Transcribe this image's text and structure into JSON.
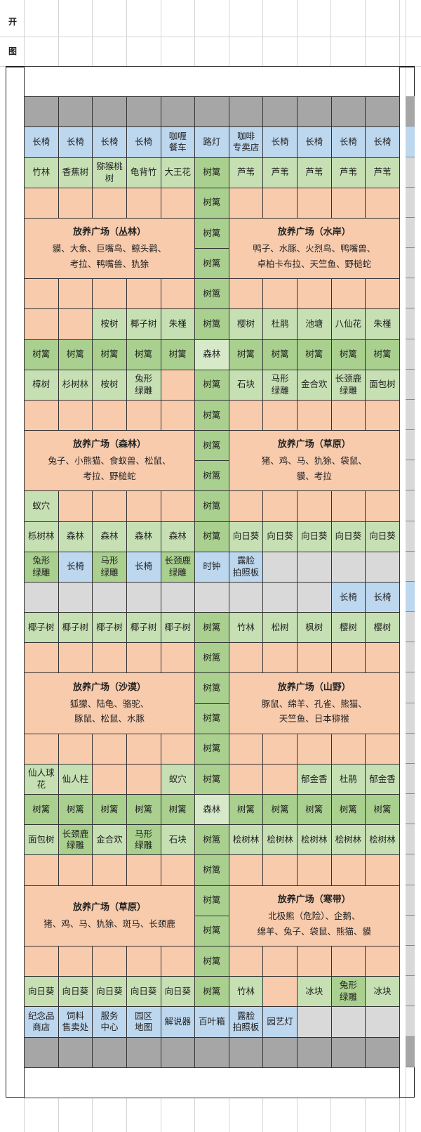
{
  "sidebar_labels": [
    "开",
    "图"
  ],
  "palette": {
    "s": "#f8cbad",
    "g": "#c6e0b4",
    "d": "#a9d08e",
    "f": "#d6e9c9",
    "b": "#bdd7ee",
    "k": "#a6a6a6",
    "l": "#d9d9d9",
    "w": "#ffffff"
  },
  "rows": [
    [
      {
        "c": "w",
        "span": 11
      }
    ],
    [
      {
        "c": "k"
      },
      {
        "c": "k"
      },
      {
        "c": "k"
      },
      {
        "c": "k"
      },
      {
        "c": "k"
      },
      {
        "c": "k"
      },
      {
        "c": "k"
      },
      {
        "c": "k"
      },
      {
        "c": "k"
      },
      {
        "c": "k"
      },
      {
        "c": "k"
      }
    ],
    [
      {
        "c": "b",
        "t": "长椅"
      },
      {
        "c": "b",
        "t": "长椅"
      },
      {
        "c": "b",
        "t": "长椅"
      },
      {
        "c": "b",
        "t": "长椅"
      },
      {
        "c": "b",
        "t": "咖喱\n餐车"
      },
      {
        "c": "b",
        "t": "路灯"
      },
      {
        "c": "b",
        "t": "咖啡\n专卖店"
      },
      {
        "c": "b",
        "t": "长椅"
      },
      {
        "c": "b",
        "t": "长椅"
      },
      {
        "c": "b",
        "t": "长椅"
      },
      {
        "c": "b",
        "t": "长椅"
      }
    ],
    [
      {
        "c": "g",
        "t": "竹林"
      },
      {
        "c": "g",
        "t": "香蕉树"
      },
      {
        "c": "g",
        "t": "猕猴桃\n树"
      },
      {
        "c": "g",
        "t": "龟背竹"
      },
      {
        "c": "g",
        "t": "大王花"
      },
      {
        "c": "d",
        "t": "树篱"
      },
      {
        "c": "g",
        "t": "芦苇"
      },
      {
        "c": "g",
        "t": "芦苇"
      },
      {
        "c": "g",
        "t": "芦苇"
      },
      {
        "c": "g",
        "t": "芦苇"
      },
      {
        "c": "g",
        "t": "芦苇"
      }
    ],
    [
      {
        "c": "s"
      },
      {
        "c": "s"
      },
      {
        "c": "s"
      },
      {
        "c": "s"
      },
      {
        "c": "s"
      },
      {
        "c": "d",
        "t": "树篱"
      },
      {
        "c": "s"
      },
      {
        "c": "s"
      },
      {
        "c": "s"
      },
      {
        "c": "s"
      },
      {
        "c": "s"
      }
    ],
    [
      {
        "c": "s",
        "span": 5,
        "rows": 2,
        "plaza": {
          "title": "放养广场（丛林）",
          "lines": [
            "貘、大象、巨嘴鸟、鲸头鹳、",
            "考拉、鸭嘴兽、犰狳"
          ]
        }
      },
      {
        "c": "d",
        "t": "树篱"
      },
      {
        "c": "s",
        "span": 5,
        "rows": 2,
        "plaza": {
          "title": "放养广场（水岸）",
          "lines": [
            "鸭子、水豚、火烈鸟、鸭嘴兽、",
            "卓柏卡布拉、天竺鱼、野槌蛇"
          ]
        }
      }
    ],
    [
      {
        "c": "d",
        "t": "树篱"
      }
    ],
    [
      {
        "c": "s"
      },
      {
        "c": "s"
      },
      {
        "c": "s"
      },
      {
        "c": "s"
      },
      {
        "c": "s"
      },
      {
        "c": "d",
        "t": "树篱"
      },
      {
        "c": "s"
      },
      {
        "c": "s"
      },
      {
        "c": "s"
      },
      {
        "c": "s"
      },
      {
        "c": "s"
      }
    ],
    [
      {
        "c": "s"
      },
      {
        "c": "s"
      },
      {
        "c": "g",
        "t": "桉树"
      },
      {
        "c": "g",
        "t": "椰子树"
      },
      {
        "c": "g",
        "t": "朱槿"
      },
      {
        "c": "d",
        "t": "树篱"
      },
      {
        "c": "g",
        "t": "樱树"
      },
      {
        "c": "g",
        "t": "杜鹃"
      },
      {
        "c": "g",
        "t": "池塘"
      },
      {
        "c": "g",
        "t": "八仙花"
      },
      {
        "c": "g",
        "t": "朱槿"
      }
    ],
    [
      {
        "c": "d",
        "t": "树篱"
      },
      {
        "c": "d",
        "t": "树篱"
      },
      {
        "c": "d",
        "t": "树篱"
      },
      {
        "c": "d",
        "t": "树篱"
      },
      {
        "c": "d",
        "t": "树篱"
      },
      {
        "c": "f",
        "t": "森林"
      },
      {
        "c": "d",
        "t": "树篱"
      },
      {
        "c": "d",
        "t": "树篱"
      },
      {
        "c": "d",
        "t": "树篱"
      },
      {
        "c": "d",
        "t": "树篱"
      },
      {
        "c": "d",
        "t": "树篱"
      }
    ],
    [
      {
        "c": "g",
        "t": "樟树"
      },
      {
        "c": "g",
        "t": "杉树林"
      },
      {
        "c": "g",
        "t": "桉树"
      },
      {
        "c": "g",
        "t": "兔形\n绿雕"
      },
      {
        "c": "s"
      },
      {
        "c": "d",
        "t": "树篱"
      },
      {
        "c": "g",
        "t": "石块"
      },
      {
        "c": "g",
        "t": "马形\n绿雕"
      },
      {
        "c": "g",
        "t": "金合欢"
      },
      {
        "c": "g",
        "t": "长颈鹿\n绿雕"
      },
      {
        "c": "g",
        "t": "面包树"
      }
    ],
    [
      {
        "c": "s"
      },
      {
        "c": "s"
      },
      {
        "c": "s"
      },
      {
        "c": "s"
      },
      {
        "c": "s"
      },
      {
        "c": "d",
        "t": "树篱"
      },
      {
        "c": "s"
      },
      {
        "c": "s"
      },
      {
        "c": "s"
      },
      {
        "c": "s"
      },
      {
        "c": "s"
      }
    ],
    [
      {
        "c": "s",
        "span": 5,
        "rows": 2,
        "plaza": {
          "title": "放养广场（森林）",
          "lines": [
            "兔子、小熊猫、食蚁兽、松鼠、",
            "考拉、野槌蛇"
          ]
        }
      },
      {
        "c": "d",
        "t": "树篱"
      },
      {
        "c": "s",
        "span": 5,
        "rows": 2,
        "plaza": {
          "title": "放养广场（草原）",
          "lines": [
            "猪、鸡、马、犰狳、袋鼠、",
            "貘、考拉"
          ]
        }
      }
    ],
    [
      {
        "c": "d",
        "t": "树篱"
      }
    ],
    [
      {
        "c": "g",
        "t": "蚁穴"
      },
      {
        "c": "s"
      },
      {
        "c": "s"
      },
      {
        "c": "s"
      },
      {
        "c": "s"
      },
      {
        "c": "d",
        "t": "树篱"
      },
      {
        "c": "s"
      },
      {
        "c": "s"
      },
      {
        "c": "s"
      },
      {
        "c": "s"
      },
      {
        "c": "s"
      }
    ],
    [
      {
        "c": "g",
        "t": "栎树林"
      },
      {
        "c": "g",
        "t": "森林"
      },
      {
        "c": "g",
        "t": "森林"
      },
      {
        "c": "g",
        "t": "森林"
      },
      {
        "c": "g",
        "t": "森林"
      },
      {
        "c": "d",
        "t": "树篱"
      },
      {
        "c": "g",
        "t": "向日葵"
      },
      {
        "c": "g",
        "t": "向日葵"
      },
      {
        "c": "g",
        "t": "向日葵"
      },
      {
        "c": "g",
        "t": "向日葵"
      },
      {
        "c": "g",
        "t": "向日葵"
      }
    ],
    [
      {
        "c": "d",
        "t": "兔形\n绿雕"
      },
      {
        "c": "b",
        "t": "长椅"
      },
      {
        "c": "d",
        "t": "马形\n绿雕"
      },
      {
        "c": "b",
        "t": "长椅"
      },
      {
        "c": "d",
        "t": "长颈鹿\n绿雕"
      },
      {
        "c": "b",
        "t": "时钟"
      },
      {
        "c": "b",
        "t": "露脸\n拍照板"
      },
      {
        "c": "l"
      },
      {
        "c": "l"
      },
      {
        "c": "l"
      },
      {
        "c": "l"
      }
    ],
    [
      {
        "c": "l"
      },
      {
        "c": "l"
      },
      {
        "c": "l"
      },
      {
        "c": "l"
      },
      {
        "c": "l"
      },
      {
        "c": "l"
      },
      {
        "c": "l"
      },
      {
        "c": "l"
      },
      {
        "c": "l"
      },
      {
        "c": "b",
        "t": "长椅"
      },
      {
        "c": "b",
        "t": "长椅"
      }
    ],
    [
      {
        "c": "g",
        "t": "椰子树"
      },
      {
        "c": "g",
        "t": "椰子树"
      },
      {
        "c": "g",
        "t": "椰子树"
      },
      {
        "c": "g",
        "t": "椰子树"
      },
      {
        "c": "g",
        "t": "椰子树"
      },
      {
        "c": "d",
        "t": "树篱"
      },
      {
        "c": "g",
        "t": "竹林"
      },
      {
        "c": "g",
        "t": "松树"
      },
      {
        "c": "g",
        "t": "枫树"
      },
      {
        "c": "g",
        "t": "樱树"
      },
      {
        "c": "g",
        "t": "樱树"
      }
    ],
    [
      {
        "c": "s"
      },
      {
        "c": "s"
      },
      {
        "c": "s"
      },
      {
        "c": "s"
      },
      {
        "c": "s"
      },
      {
        "c": "d",
        "t": "树篱"
      },
      {
        "c": "s"
      },
      {
        "c": "s"
      },
      {
        "c": "s"
      },
      {
        "c": "s"
      },
      {
        "c": "s"
      }
    ],
    [
      {
        "c": "s",
        "span": 5,
        "rows": 2,
        "plaza": {
          "title": "放养广场（沙漠）",
          "lines": [
            "狐獴、陆龟、骆驼、",
            "豚鼠、松鼠、水豚"
          ]
        }
      },
      {
        "c": "d",
        "t": "树篱"
      },
      {
        "c": "s",
        "span": 5,
        "rows": 2,
        "plaza": {
          "title": "放养广场（山野）",
          "lines": [
            "豚鼠、绵羊、孔雀、熊猫、",
            "天竺鱼、日本猕猴"
          ]
        }
      }
    ],
    [
      {
        "c": "d",
        "t": "树篱"
      }
    ],
    [
      {
        "c": "s"
      },
      {
        "c": "s"
      },
      {
        "c": "s"
      },
      {
        "c": "s"
      },
      {
        "c": "s"
      },
      {
        "c": "d",
        "t": "树篱"
      },
      {
        "c": "s"
      },
      {
        "c": "s"
      },
      {
        "c": "s"
      },
      {
        "c": "s"
      },
      {
        "c": "s"
      }
    ],
    [
      {
        "c": "g",
        "t": "仙人球\n花"
      },
      {
        "c": "g",
        "t": "仙人柱"
      },
      {
        "c": "s"
      },
      {
        "c": "s"
      },
      {
        "c": "g",
        "t": "蚁穴"
      },
      {
        "c": "d",
        "t": "树篱"
      },
      {
        "c": "s"
      },
      {
        "c": "s"
      },
      {
        "c": "g",
        "t": "郁金香"
      },
      {
        "c": "g",
        "t": "杜鹃"
      },
      {
        "c": "g",
        "t": "郁金香"
      }
    ],
    [
      {
        "c": "d",
        "t": "树篱"
      },
      {
        "c": "d",
        "t": "树篱"
      },
      {
        "c": "d",
        "t": "树篱"
      },
      {
        "c": "d",
        "t": "树篱"
      },
      {
        "c": "d",
        "t": "树篱"
      },
      {
        "c": "f",
        "t": "森林"
      },
      {
        "c": "d",
        "t": "树篱"
      },
      {
        "c": "d",
        "t": "树篱"
      },
      {
        "c": "d",
        "t": "树篱"
      },
      {
        "c": "d",
        "t": "树篱"
      },
      {
        "c": "d",
        "t": "树篱"
      }
    ],
    [
      {
        "c": "g",
        "t": "面包树"
      },
      {
        "c": "d",
        "t": "长颈鹿\n绿雕"
      },
      {
        "c": "g",
        "t": "金合欢"
      },
      {
        "c": "d",
        "t": "马形\n绿雕"
      },
      {
        "c": "g",
        "t": "石块"
      },
      {
        "c": "d",
        "t": "树篱"
      },
      {
        "c": "g",
        "t": "桧树林"
      },
      {
        "c": "g",
        "t": "桧树林"
      },
      {
        "c": "g",
        "t": "桧树林"
      },
      {
        "c": "g",
        "t": "桧树林"
      },
      {
        "c": "g",
        "t": "桧树林"
      }
    ],
    [
      {
        "c": "s"
      },
      {
        "c": "s"
      },
      {
        "c": "s"
      },
      {
        "c": "s"
      },
      {
        "c": "s"
      },
      {
        "c": "d",
        "t": "树篱"
      },
      {
        "c": "s"
      },
      {
        "c": "s"
      },
      {
        "c": "s"
      },
      {
        "c": "s"
      },
      {
        "c": "s"
      }
    ],
    [
      {
        "c": "s",
        "span": 5,
        "rows": 2,
        "plaza": {
          "title": "放养广场（草原）",
          "lines": [
            "猪、鸡、马、犰狳、斑马、长颈鹿"
          ]
        }
      },
      {
        "c": "d",
        "t": "树篱"
      },
      {
        "c": "s",
        "span": 5,
        "rows": 2,
        "plaza": {
          "title": "放养广场（寒带）",
          "lines": [
            "北极熊（危险）、企鹅、",
            "绵羊、兔子、袋鼠、熊猫、貘"
          ]
        }
      }
    ],
    [
      {
        "c": "d",
        "t": "树篱"
      }
    ],
    [
      {
        "c": "s"
      },
      {
        "c": "s"
      },
      {
        "c": "s"
      },
      {
        "c": "s"
      },
      {
        "c": "s"
      },
      {
        "c": "d",
        "t": "树篱"
      },
      {
        "c": "s"
      },
      {
        "c": "s"
      },
      {
        "c": "s"
      },
      {
        "c": "s"
      },
      {
        "c": "s"
      }
    ],
    [
      {
        "c": "g",
        "t": "向日葵"
      },
      {
        "c": "g",
        "t": "向日葵"
      },
      {
        "c": "g",
        "t": "向日葵"
      },
      {
        "c": "g",
        "t": "向日葵"
      },
      {
        "c": "g",
        "t": "向日葵"
      },
      {
        "c": "d",
        "t": "树篱"
      },
      {
        "c": "g",
        "t": "竹林"
      },
      {
        "c": "s"
      },
      {
        "c": "g",
        "t": "冰块"
      },
      {
        "c": "d",
        "t": "兔形\n绿雕"
      },
      {
        "c": "g",
        "t": "冰块"
      }
    ],
    [
      {
        "c": "b",
        "t": "纪念品\n商店"
      },
      {
        "c": "b",
        "t": "饲料\n售卖处"
      },
      {
        "c": "b",
        "t": "服务\n中心"
      },
      {
        "c": "b",
        "t": "园区\n地图"
      },
      {
        "c": "b",
        "t": "解说器"
      },
      {
        "c": "b",
        "t": "百叶箱"
      },
      {
        "c": "b",
        "t": "露脸\n拍照板"
      },
      {
        "c": "b",
        "t": "园艺灯"
      },
      {
        "c": "l"
      },
      {
        "c": "l"
      },
      {
        "c": "l"
      }
    ],
    [
      {
        "c": "k"
      },
      {
        "c": "k"
      },
      {
        "c": "k"
      },
      {
        "c": "k"
      },
      {
        "c": "k"
      },
      {
        "c": "k"
      },
      {
        "c": "k"
      },
      {
        "c": "k"
      },
      {
        "c": "k"
      },
      {
        "c": "k"
      },
      {
        "c": "k"
      }
    ],
    [
      {
        "c": "w",
        "span": 11
      }
    ]
  ]
}
